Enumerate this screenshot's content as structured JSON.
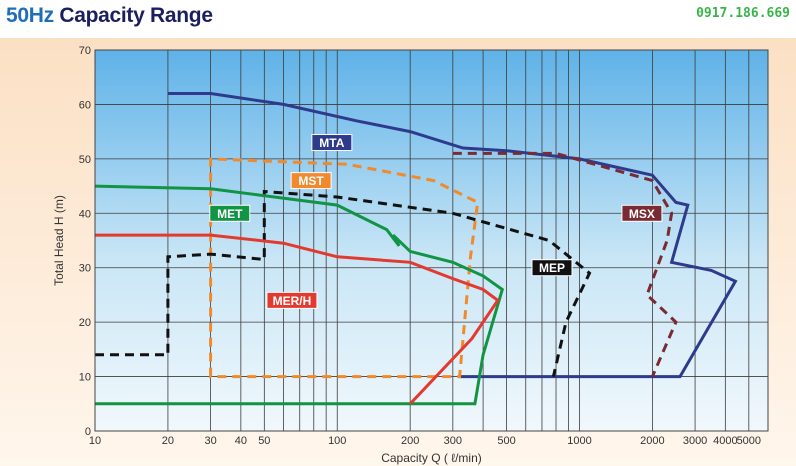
{
  "header": {
    "title_prefix": "50Hz",
    "title_rest": " Capacity Range",
    "phone": "0917.186.669"
  },
  "chart_data": {
    "type": "area",
    "title": "50Hz Capacity Range",
    "xlabel": "Capacity Q ( ℓ/min)",
    "ylabel": "Total Head H (m)",
    "xscale": "log",
    "xlim": [
      10,
      6000
    ],
    "ylim": [
      0,
      70
    ],
    "grid": true,
    "x_ticks": [
      10,
      20,
      30,
      40,
      50,
      100,
      200,
      300,
      500,
      1000,
      2000,
      3000,
      4000,
      5000
    ],
    "x_tick_labels": [
      "10",
      "20",
      "30",
      "40",
      "50",
      "100",
      "200",
      "300",
      "500",
      "1000",
      "2000",
      "3000",
      "4000",
      "5000"
    ],
    "y_ticks": [
      0,
      10,
      20,
      30,
      40,
      50,
      60,
      70
    ],
    "y_tick_labels": [
      "0",
      "10",
      "20",
      "30",
      "40",
      "50",
      "60",
      "70"
    ],
    "colors": {
      "MTA": "#2e3a8c",
      "MST": "#f08a2c",
      "MET": "#129445",
      "MER/H": "#e33a2f",
      "MEP": "#111111",
      "MSX": "#7a2a33"
    },
    "series": [
      {
        "name": "MTA",
        "style": "solid",
        "points": [
          [
            20,
            62
          ],
          [
            30,
            62
          ],
          [
            60,
            60
          ],
          [
            120,
            57
          ],
          [
            200,
            55
          ],
          [
            330,
            52
          ],
          [
            500,
            51.5
          ],
          [
            1000,
            50
          ],
          [
            2000,
            47
          ],
          [
            2500,
            42
          ],
          [
            2800,
            41.5
          ],
          [
            2400,
            31
          ],
          [
            3500,
            29.5
          ],
          [
            4400,
            27.5
          ],
          [
            2600,
            10
          ],
          [
            1000,
            10
          ],
          [
            320,
            10
          ]
        ]
      },
      {
        "name": "MSX",
        "style": "dashed",
        "points": [
          [
            300,
            51
          ],
          [
            800,
            51
          ],
          [
            2000,
            46
          ],
          [
            2400,
            40
          ],
          [
            2300,
            35
          ],
          [
            1900,
            25
          ],
          [
            2500,
            20
          ],
          [
            2000,
            10
          ]
        ]
      },
      {
        "name": "MST",
        "style": "dashed",
        "points": [
          [
            30,
            10
          ],
          [
            30,
            50
          ],
          [
            110,
            49
          ],
          [
            250,
            46
          ],
          [
            380,
            42
          ],
          [
            355,
            32
          ],
          [
            320,
            10
          ],
          [
            30,
            10
          ]
        ]
      },
      {
        "name": "MEP",
        "style": "dashed",
        "points": [
          [
            10,
            14
          ],
          [
            20,
            14
          ],
          [
            20,
            32
          ],
          [
            30,
            32.5
          ],
          [
            50,
            31.5
          ],
          [
            50,
            44
          ],
          [
            100,
            43
          ],
          [
            300,
            40
          ],
          [
            750,
            35
          ],
          [
            1100,
            29
          ],
          [
            880,
            20
          ],
          [
            780,
            10
          ]
        ]
      },
      {
        "name": "MET",
        "style": "solid",
        "points": [
          [
            10,
            45
          ],
          [
            30,
            44.5
          ],
          [
            100,
            41.5
          ],
          [
            160,
            37
          ],
          [
            180,
            34
          ],
          [
            170,
            36
          ],
          [
            200,
            33
          ],
          [
            300,
            31
          ],
          [
            400,
            28.5
          ],
          [
            480,
            26
          ],
          [
            400,
            14
          ],
          [
            370,
            5
          ],
          [
            10,
            5
          ]
        ]
      },
      {
        "name": "MER/H",
        "style": "solid",
        "points": [
          [
            10,
            36
          ],
          [
            30,
            36
          ],
          [
            60,
            34.5
          ],
          [
            100,
            32
          ],
          [
            200,
            31
          ],
          [
            300,
            28
          ],
          [
            400,
            26
          ],
          [
            460,
            24
          ],
          [
            360,
            17
          ],
          [
            200,
            5
          ]
        ]
      }
    ],
    "series_labels": [
      {
        "name": "MTA",
        "text": "MTA",
        "at": [
          95,
          53
        ]
      },
      {
        "name": "MST",
        "text": "MST",
        "at": [
          78,
          46
        ]
      },
      {
        "name": "MET",
        "text": "MET",
        "at": [
          36,
          40
        ]
      },
      {
        "name": "MER/H",
        "text": "MER/H",
        "at": [
          65,
          24
        ]
      },
      {
        "name": "MEP",
        "text": "MEP",
        "at": [
          770,
          30
        ]
      },
      {
        "name": "MSX",
        "text": "MSX",
        "at": [
          1810,
          40
        ]
      }
    ]
  }
}
